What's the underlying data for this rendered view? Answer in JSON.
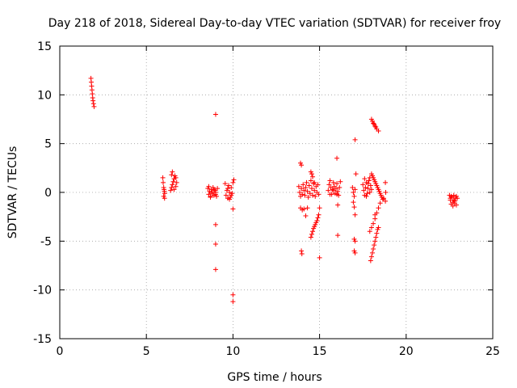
{
  "chart_data": {
    "type": "scatter",
    "title": "Day 218 of 2018, Sidereal Day-to-day VTEC variation (SDTVAR) for receiver froy",
    "xlabel": "GPS time / hours",
    "ylabel": "SDTVAR / TECUs",
    "xlim": [
      0,
      25
    ],
    "ylim": [
      -15,
      15
    ],
    "x_ticks": [
      "0",
      "5",
      "10",
      "15",
      "20",
      "25"
    ],
    "y_ticks": [
      "15",
      "10",
      "5",
      "0",
      "-5",
      "-10",
      "-15"
    ],
    "grid": true,
    "marker": "+",
    "series": [
      {
        "color": "#ff0000",
        "points": [
          [
            1.8,
            11.7
          ],
          [
            1.82,
            11.3
          ],
          [
            1.84,
            10.9
          ],
          [
            1.86,
            10.5
          ],
          [
            1.88,
            10.1
          ],
          [
            1.9,
            9.7
          ],
          [
            1.92,
            9.4
          ],
          [
            1.95,
            9.1
          ],
          [
            1.98,
            8.8
          ],
          [
            5.95,
            1.5
          ],
          [
            5.97,
            1.0
          ],
          [
            6.0,
            0.5
          ],
          [
            6.02,
            0.3
          ],
          [
            6.04,
            0.1
          ],
          [
            6.06,
            -0.1
          ],
          [
            6.0,
            -0.4
          ],
          [
            6.05,
            -0.6
          ],
          [
            6.4,
            0.2
          ],
          [
            6.45,
            0.5
          ],
          [
            6.5,
            0.8
          ],
          [
            6.55,
            1.1
          ],
          [
            6.6,
            1.4
          ],
          [
            6.65,
            1.7
          ],
          [
            6.7,
            1.5
          ],
          [
            6.5,
            2.1
          ],
          [
            6.6,
            0.3
          ],
          [
            6.7,
            0.6
          ],
          [
            6.75,
            1.0
          ],
          [
            6.45,
            1.8
          ],
          [
            8.55,
            0.4
          ],
          [
            8.6,
            -0.2
          ],
          [
            8.65,
            0.1
          ],
          [
            8.7,
            -0.4
          ],
          [
            8.75,
            0.3
          ],
          [
            8.8,
            -0.1
          ],
          [
            8.85,
            0.5
          ],
          [
            8.9,
            -0.3
          ],
          [
            8.95,
            0.2
          ],
          [
            9.0,
            0.0
          ],
          [
            9.05,
            -0.4
          ],
          [
            9.1,
            0.4
          ],
          [
            8.6,
            0.6
          ],
          [
            8.7,
            -0.5
          ],
          [
            8.8,
            0.0
          ],
          [
            8.9,
            0.3
          ],
          [
            9.0,
            -0.2
          ],
          [
            9.0,
            8.0
          ],
          [
            9.0,
            -3.3
          ],
          [
            9.0,
            -5.3
          ],
          [
            9.0,
            -7.9
          ],
          [
            9.55,
            0.9
          ],
          [
            9.6,
            -0.3
          ],
          [
            9.65,
            0.2
          ],
          [
            9.7,
            -0.6
          ],
          [
            9.75,
            0.7
          ],
          [
            9.8,
            0.0
          ],
          [
            9.85,
            -0.5
          ],
          [
            9.9,
            0.5
          ],
          [
            9.95,
            -0.1
          ],
          [
            10.0,
            1.0
          ],
          [
            10.05,
            1.3
          ],
          [
            9.7,
            0.4
          ],
          [
            9.8,
            -0.7
          ],
          [
            9.9,
            -0.3
          ],
          [
            10.0,
            -1.7
          ],
          [
            10.0,
            -10.5
          ],
          [
            10.0,
            -11.2
          ],
          [
            13.8,
            0.6
          ],
          [
            13.85,
            0.0
          ],
          [
            13.9,
            -0.4
          ],
          [
            13.95,
            0.4
          ],
          [
            14.0,
            -0.2
          ],
          [
            14.05,
            0.8
          ],
          [
            14.1,
            0.2
          ],
          [
            14.15,
            -0.3
          ],
          [
            14.2,
            0.5
          ],
          [
            14.25,
            1.0
          ],
          [
            14.3,
            0.1
          ],
          [
            14.35,
            -0.5
          ],
          [
            14.4,
            0.7
          ],
          [
            14.45,
            -0.1
          ],
          [
            14.5,
            1.2
          ],
          [
            14.55,
            0.4
          ],
          [
            14.6,
            -0.3
          ],
          [
            14.65,
            0.9
          ],
          [
            14.7,
            0.2
          ],
          [
            14.75,
            -0.4
          ],
          [
            14.8,
            0.6
          ],
          [
            14.85,
            0.0
          ],
          [
            14.9,
            0.8
          ],
          [
            14.95,
            -0.2
          ],
          [
            13.9,
            3.0
          ],
          [
            13.95,
            2.8
          ],
          [
            14.5,
            2.1
          ],
          [
            14.55,
            1.9
          ],
          [
            14.6,
            1.6
          ],
          [
            14.7,
            1.0
          ],
          [
            13.9,
            -1.6
          ],
          [
            14.0,
            -1.8
          ],
          [
            14.1,
            -1.7
          ],
          [
            14.3,
            -1.6
          ],
          [
            14.2,
            -2.4
          ],
          [
            13.95,
            -6.0
          ],
          [
            13.98,
            -6.3
          ],
          [
            14.5,
            -4.6
          ],
          [
            14.55,
            -4.3
          ],
          [
            14.6,
            -4.0
          ],
          [
            14.65,
            -3.7
          ],
          [
            14.7,
            -3.5
          ],
          [
            14.75,
            -3.3
          ],
          [
            14.8,
            -3.1
          ],
          [
            14.85,
            -2.9
          ],
          [
            14.9,
            -2.6
          ],
          [
            14.95,
            -2.3
          ],
          [
            15.0,
            -1.6
          ],
          [
            15.0,
            -6.7
          ],
          [
            15.5,
            0.2
          ],
          [
            15.55,
            0.8
          ],
          [
            15.6,
            1.2
          ],
          [
            15.65,
            0.5
          ],
          [
            15.7,
            -0.2
          ],
          [
            15.75,
            0.3
          ],
          [
            15.8,
            1.0
          ],
          [
            15.85,
            0.6
          ],
          [
            15.9,
            -0.1
          ],
          [
            15.95,
            0.4
          ],
          [
            16.0,
            0.9
          ],
          [
            16.05,
            0.1
          ],
          [
            16.1,
            -0.3
          ],
          [
            16.15,
            0.5
          ],
          [
            16.2,
            1.1
          ],
          [
            15.6,
            -0.2
          ],
          [
            15.8,
            0.2
          ],
          [
            16.0,
            -0.2
          ],
          [
            16.0,
            3.5
          ],
          [
            16.05,
            -1.3
          ],
          [
            16.05,
            -4.4
          ],
          [
            16.9,
            0.5
          ],
          [
            16.95,
            0.0
          ],
          [
            17.0,
            -0.4
          ],
          [
            17.05,
            0.3
          ],
          [
            16.95,
            -1.0
          ],
          [
            17.0,
            -1.5
          ],
          [
            17.05,
            -2.3
          ],
          [
            17.05,
            5.4
          ],
          [
            17.1,
            1.9
          ],
          [
            17.0,
            -4.8
          ],
          [
            17.05,
            -5.0
          ],
          [
            17.0,
            -6.0
          ],
          [
            17.05,
            -6.2
          ],
          [
            17.5,
            0.8
          ],
          [
            17.55,
            0.2
          ],
          [
            17.6,
            -0.3
          ],
          [
            17.65,
            0.5
          ],
          [
            17.7,
            1.0
          ],
          [
            17.75,
            -0.1
          ],
          [
            17.8,
            0.4
          ],
          [
            17.85,
            1.2
          ],
          [
            17.9,
            0.0
          ],
          [
            17.95,
            0.7
          ],
          [
            17.6,
            1.4
          ],
          [
            17.7,
            -0.4
          ],
          [
            17.8,
            0.9
          ],
          [
            17.9,
            1.5
          ],
          [
            18.0,
            0.3
          ],
          [
            18.0,
            1.9
          ],
          [
            18.05,
            1.7
          ],
          [
            18.1,
            1.5
          ],
          [
            18.15,
            1.3
          ],
          [
            18.2,
            1.1
          ],
          [
            18.25,
            0.9
          ],
          [
            18.3,
            0.7
          ],
          [
            18.35,
            0.5
          ],
          [
            18.4,
            0.3
          ],
          [
            18.45,
            0.1
          ],
          [
            18.5,
            -0.1
          ],
          [
            18.55,
            -0.3
          ],
          [
            18.6,
            -0.5
          ],
          [
            18.65,
            -0.7
          ],
          [
            18.7,
            -0.6
          ],
          [
            17.9,
            -4.0
          ],
          [
            18.0,
            -3.6
          ],
          [
            18.1,
            -3.2
          ],
          [
            18.2,
            -2.7
          ],
          [
            18.3,
            -2.1
          ],
          [
            18.4,
            -1.6
          ],
          [
            18.5,
            -1.1
          ],
          [
            18.2,
            -2.3
          ],
          [
            17.95,
            -7.0
          ],
          [
            18.0,
            -6.6
          ],
          [
            18.05,
            -6.2
          ],
          [
            18.1,
            -5.8
          ],
          [
            18.15,
            -5.4
          ],
          [
            18.2,
            -5.0
          ],
          [
            18.25,
            -4.6
          ],
          [
            18.3,
            -4.2
          ],
          [
            18.35,
            -3.8
          ],
          [
            18.4,
            -3.6
          ],
          [
            18.0,
            7.5
          ],
          [
            18.05,
            7.3
          ],
          [
            18.1,
            7.1
          ],
          [
            18.15,
            7.0
          ],
          [
            18.2,
            6.8
          ],
          [
            18.25,
            6.7
          ],
          [
            18.3,
            6.5
          ],
          [
            18.4,
            6.3
          ],
          [
            18.8,
            1.0
          ],
          [
            18.8,
            -0.9
          ],
          [
            18.82,
            0.0
          ],
          [
            22.5,
            -0.3
          ],
          [
            22.55,
            -0.8
          ],
          [
            22.6,
            -1.2
          ],
          [
            22.65,
            -0.5
          ],
          [
            22.7,
            -1.0
          ],
          [
            22.75,
            -0.3
          ],
          [
            22.8,
            -0.9
          ],
          [
            22.85,
            -0.6
          ],
          [
            22.9,
            -1.3
          ],
          [
            22.95,
            -0.6
          ],
          [
            22.6,
            -0.4
          ],
          [
            22.7,
            -1.4
          ],
          [
            22.8,
            -1.1
          ],
          [
            22.55,
            -0.6
          ],
          [
            22.75,
            -0.8
          ],
          [
            22.9,
            -0.4
          ]
        ]
      }
    ]
  }
}
